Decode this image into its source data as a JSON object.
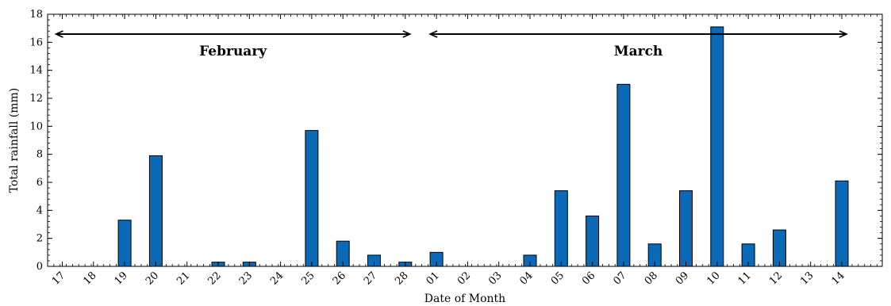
{
  "chart_data": {
    "type": "bar",
    "title": "",
    "xlabel": "Date of Month",
    "ylabel": "Total rainfall (mm)",
    "ylim": [
      0,
      18
    ],
    "yticks": [
      0,
      2,
      4,
      6,
      8,
      10,
      12,
      14,
      16,
      18
    ],
    "grid": false,
    "legend": "none",
    "bar_color": "#0a6ab8",
    "categories": [
      "17",
      "18",
      "19",
      "20",
      "21",
      "22",
      "23",
      "24",
      "25",
      "26",
      "27",
      "28",
      "01",
      "02",
      "03",
      "04",
      "05",
      "06",
      "07",
      "08",
      "09",
      "10",
      "11",
      "12",
      "13",
      "14"
    ],
    "values": [
      0,
      0,
      3.3,
      7.9,
      0,
      0.3,
      0.3,
      0,
      9.7,
      1.8,
      0.8,
      0.3,
      1.0,
      0,
      0,
      0.8,
      5.4,
      3.6,
      13.0,
      1.6,
      5.4,
      17.1,
      1.6,
      2.6,
      0,
      6.1
    ],
    "annotations": [
      {
        "text": "February",
        "from": "17",
        "to": "28"
      },
      {
        "text": "March",
        "from": "01",
        "to": "14"
      }
    ]
  }
}
